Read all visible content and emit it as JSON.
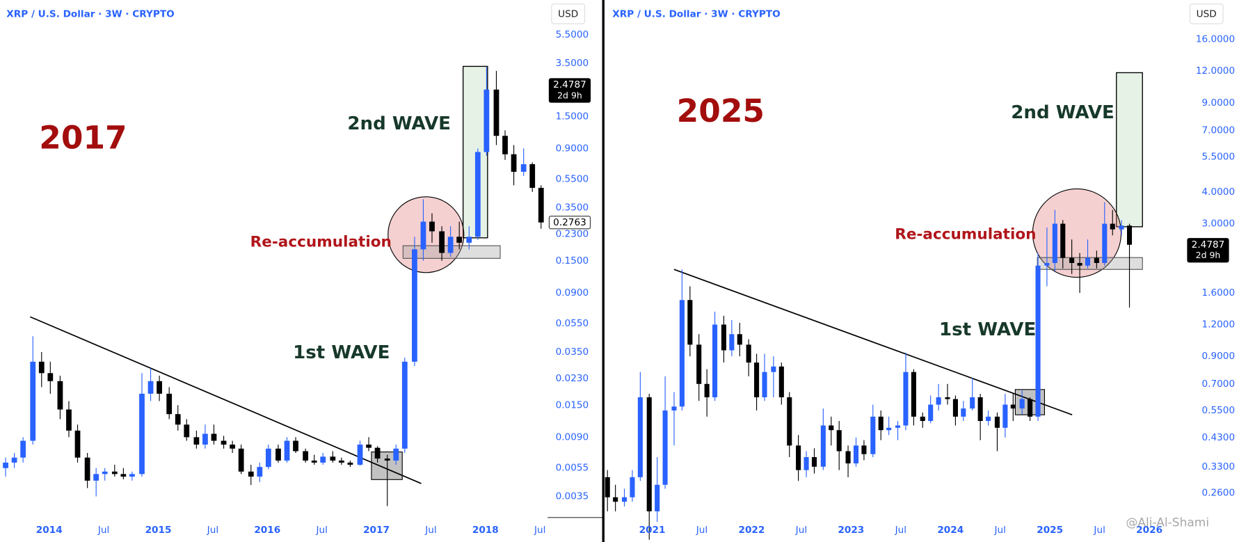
{
  "watermark": "@Ali-Al-Shami",
  "chart_data": [
    {
      "type": "candlestick",
      "title": "XRP / U.S. Dollar · 3W · CRYPTO",
      "currency": "USD",
      "log_scale": true,
      "grid": false,
      "up_color": "#2962ff",
      "down_color": "#000000",
      "xlim": [
        2013.55,
        2018.57
      ],
      "ylim": [
        0.0025,
        9.6
      ],
      "xticks": [
        2014,
        {
          "value": 2014.5,
          "label": "Jul"
        },
        2015,
        {
          "value": 2015.5,
          "label": "Jul"
        },
        2016,
        {
          "value": 2016.5,
          "label": "Jul"
        },
        2017,
        {
          "value": 2017.5,
          "label": "Jul"
        },
        2018,
        {
          "value": 2018.5,
          "label": "Jul"
        }
      ],
      "yticks": [
        {
          "value": 5.5,
          "label": "5.5000"
        },
        {
          "value": 3.5,
          "label": "3.5000"
        },
        {
          "value": 1.5,
          "label": "1.5000"
        },
        {
          "value": 0.9,
          "label": "0.9000"
        },
        {
          "value": 0.55,
          "label": "0.5500"
        },
        {
          "value": 0.35,
          "label": "0.3500"
        },
        {
          "value": 0.23,
          "label": "0.2300"
        },
        {
          "value": 0.15,
          "label": "0.1500"
        },
        {
          "value": 0.09,
          "label": "0.0900"
        },
        {
          "value": 0.055,
          "label": "0.0550"
        },
        {
          "value": 0.035,
          "label": "0.0350"
        },
        {
          "value": 0.023,
          "label": "0.0230"
        },
        {
          "value": 0.015,
          "label": "0.0150"
        },
        {
          "value": 0.009,
          "label": "0.0090"
        },
        {
          "value": 0.0055,
          "label": "0.0055"
        },
        {
          "value": 0.0035,
          "label": "0.0035"
        }
      ],
      "current_price": 2.4787,
      "countdown": "2d 9h",
      "annotations": {
        "year_label": "2017",
        "second_wave": "2nd WAVE",
        "first_wave": "1st WAVE",
        "reaccumulation": "Re-accumulation"
      },
      "x": [
        2013.6,
        2013.68,
        2013.76,
        2013.85,
        2013.93,
        2014.01,
        2014.1,
        2014.18,
        2014.26,
        2014.35,
        2014.43,
        2014.51,
        2014.6,
        2014.68,
        2014.76,
        2014.85,
        2014.93,
        2015.01,
        2015.1,
        2015.18,
        2015.26,
        2015.35,
        2015.43,
        2015.51,
        2015.6,
        2015.68,
        2015.76,
        2015.85,
        2015.93,
        2016.01,
        2016.1,
        2016.18,
        2016.26,
        2016.35,
        2016.43,
        2016.51,
        2016.6,
        2016.68,
        2016.76,
        2016.85,
        2016.93,
        2017.01,
        2017.1,
        2017.18,
        2017.26,
        2017.35,
        2017.43,
        2017.51,
        2017.6,
        2017.68,
        2017.76,
        2017.85,
        2017.93,
        2018.01,
        2018.1,
        2018.18,
        2018.26,
        2018.35,
        2018.43,
        2018.51
      ],
      "open": [
        0.0055,
        0.006,
        0.0065,
        0.0085,
        0.03,
        0.025,
        0.022,
        0.014,
        0.01,
        0.0065,
        0.0045,
        0.005,
        0.0052,
        0.005,
        0.0048,
        0.005,
        0.018,
        0.022,
        0.018,
        0.013,
        0.011,
        0.009,
        0.008,
        0.0095,
        0.0085,
        0.008,
        0.0075,
        0.0052,
        0.0048,
        0.0056,
        0.0075,
        0.0062,
        0.0085,
        0.0072,
        0.0062,
        0.006,
        0.0066,
        0.0062,
        0.006,
        0.0058,
        0.008,
        0.0076,
        0.0064,
        0.0062,
        0.0075,
        0.03,
        0.18,
        0.28,
        0.24,
        0.17,
        0.22,
        0.2,
        0.22,
        0.85,
        2.3,
        1.1,
        0.82,
        0.62,
        0.7,
        0.48
      ],
      "high": [
        0.0065,
        0.007,
        0.009,
        0.045,
        0.035,
        0.03,
        0.024,
        0.016,
        0.011,
        0.007,
        0.0055,
        0.0055,
        0.0058,
        0.0055,
        0.0052,
        0.025,
        0.027,
        0.024,
        0.02,
        0.015,
        0.012,
        0.01,
        0.011,
        0.011,
        0.0092,
        0.0085,
        0.008,
        0.0058,
        0.006,
        0.008,
        0.008,
        0.009,
        0.009,
        0.0075,
        0.0068,
        0.007,
        0.0072,
        0.0065,
        0.0062,
        0.0085,
        0.009,
        0.0078,
        0.0068,
        0.008,
        0.032,
        0.22,
        0.4,
        0.32,
        0.26,
        0.26,
        0.28,
        0.26,
        0.9,
        3.3,
        3.1,
        1.2,
        0.95,
        0.9,
        0.72,
        0.5
      ],
      "low": [
        0.0048,
        0.0055,
        0.006,
        0.008,
        0.02,
        0.018,
        0.012,
        0.009,
        0.006,
        0.004,
        0.0035,
        0.0045,
        0.0048,
        0.0046,
        0.0045,
        0.0048,
        0.016,
        0.016,
        0.012,
        0.01,
        0.0085,
        0.0075,
        0.0075,
        0.008,
        0.0075,
        0.007,
        0.005,
        0.0042,
        0.0044,
        0.0054,
        0.006,
        0.006,
        0.007,
        0.006,
        0.0058,
        0.0058,
        0.006,
        0.0058,
        0.0056,
        0.0057,
        0.0072,
        0.006,
        0.003,
        0.0058,
        0.007,
        0.028,
        0.15,
        0.2,
        0.15,
        0.16,
        0.18,
        0.18,
        0.21,
        0.8,
        0.95,
        0.75,
        0.5,
        0.58,
        0.45,
        0.25
      ],
      "close": [
        0.006,
        0.0065,
        0.0085,
        0.03,
        0.025,
        0.022,
        0.014,
        0.01,
        0.0065,
        0.0045,
        0.005,
        0.0052,
        0.005,
        0.0048,
        0.005,
        0.018,
        0.022,
        0.018,
        0.013,
        0.011,
        0.009,
        0.008,
        0.0095,
        0.0085,
        0.008,
        0.0075,
        0.0052,
        0.0048,
        0.0056,
        0.0075,
        0.0062,
        0.0085,
        0.0072,
        0.0062,
        0.006,
        0.0066,
        0.0062,
        0.006,
        0.0058,
        0.008,
        0.0076,
        0.0064,
        0.0062,
        0.0075,
        0.03,
        0.18,
        0.28,
        0.24,
        0.17,
        0.22,
        0.2,
        0.22,
        0.85,
        2.3,
        1.1,
        0.82,
        0.62,
        0.7,
        0.48,
        0.2763
      ]
    },
    {
      "type": "candlestick",
      "title": "XRP / U.S. Dollar · 3W · CRYPTO",
      "currency": "USD",
      "log_scale": true,
      "grid": false,
      "up_color": "#2962ff",
      "down_color": "#000000",
      "xlim": [
        2020.52,
        2026.36
      ],
      "ylim": [
        0.208,
        22.9
      ],
      "xticks": [
        2021,
        {
          "value": 2021.5,
          "label": "Jul"
        },
        2022,
        {
          "value": 2022.5,
          "label": "Jul"
        },
        2023,
        {
          "value": 2023.5,
          "label": "Jul"
        },
        2024,
        {
          "value": 2024.5,
          "label": "Jul"
        },
        2025,
        {
          "value": 2025.5,
          "label": "Jul"
        },
        2026
      ],
      "yticks": [
        {
          "value": 16,
          "label": "16.0000"
        },
        {
          "value": 12,
          "label": "12.0000"
        },
        {
          "value": 9,
          "label": "9.0000"
        },
        {
          "value": 7,
          "label": "7.0000"
        },
        {
          "value": 5.5,
          "label": "5.5000"
        },
        {
          "value": 4,
          "label": "4.0000"
        },
        {
          "value": 3,
          "label": "3.0000"
        },
        {
          "value": 1.6,
          "label": "1.6000"
        },
        {
          "value": 1.2,
          "label": "1.2000"
        },
        {
          "value": 0.9,
          "label": "0.9000"
        },
        {
          "value": 0.7,
          "label": "0.7000"
        },
        {
          "value": 0.55,
          "label": "0.5500"
        },
        {
          "value": 0.43,
          "label": "0.4300"
        },
        {
          "value": 0.33,
          "label": "0.3300"
        },
        {
          "value": 0.26,
          "label": "0.2600"
        }
      ],
      "countdown": "2d 9h",
      "annotations": {
        "year_label": "2025",
        "second_wave": "2nd WAVE",
        "first_wave": "1st WAVE",
        "reaccumulation": "Re-accumulation"
      },
      "x": [
        2020.55,
        2020.63,
        2020.72,
        2020.8,
        2020.88,
        2020.97,
        2021.05,
        2021.13,
        2021.22,
        2021.3,
        2021.38,
        2021.47,
        2021.55,
        2021.63,
        2021.72,
        2021.8,
        2021.88,
        2021.97,
        2022.05,
        2022.13,
        2022.22,
        2022.3,
        2022.38,
        2022.47,
        2022.55,
        2022.63,
        2022.72,
        2022.8,
        2022.88,
        2022.97,
        2023.05,
        2023.13,
        2023.22,
        2023.3,
        2023.38,
        2023.47,
        2023.55,
        2023.63,
        2023.72,
        2023.8,
        2023.88,
        2023.97,
        2024.05,
        2024.13,
        2024.22,
        2024.3,
        2024.38,
        2024.47,
        2024.55,
        2024.63,
        2024.72,
        2024.8,
        2024.88,
        2024.97,
        2025.05,
        2025.13,
        2025.22,
        2025.3,
        2025.38,
        2025.47,
        2025.55,
        2025.63,
        2025.72,
        2025.8
      ],
      "open": [
        0.3,
        0.25,
        0.24,
        0.25,
        0.3,
        0.62,
        0.22,
        0.28,
        0.55,
        0.57,
        1.5,
        1.0,
        0.7,
        0.62,
        1.2,
        0.95,
        1.1,
        1.0,
        0.85,
        0.62,
        0.78,
        0.82,
        0.62,
        0.4,
        0.32,
        0.36,
        0.33,
        0.48,
        0.46,
        0.38,
        0.34,
        0.4,
        0.37,
        0.52,
        0.46,
        0.47,
        0.48,
        0.78,
        0.52,
        0.5,
        0.58,
        0.62,
        0.61,
        0.52,
        0.56,
        0.62,
        0.5,
        0.52,
        0.47,
        0.58,
        0.56,
        0.61,
        0.52,
        2.05,
        2.1,
        3.0,
        2.2,
        2.1,
        2.05,
        2.2,
        2.1,
        3.0,
        2.85,
        2.95
      ],
      "high": [
        0.32,
        0.28,
        0.27,
        0.32,
        0.78,
        0.64,
        0.36,
        0.75,
        0.65,
        1.98,
        1.7,
        1.1,
        0.8,
        1.35,
        1.3,
        1.25,
        1.22,
        1.05,
        0.92,
        0.92,
        0.9,
        0.85,
        0.65,
        0.44,
        0.38,
        0.39,
        0.56,
        0.52,
        0.5,
        0.4,
        0.43,
        0.42,
        0.58,
        0.55,
        0.52,
        0.5,
        0.93,
        0.8,
        0.54,
        0.63,
        0.7,
        0.7,
        0.63,
        0.6,
        0.74,
        0.64,
        0.55,
        0.54,
        0.64,
        0.64,
        0.66,
        0.62,
        2.3,
        2.9,
        3.4,
        3.1,
        2.6,
        2.3,
        2.6,
        2.35,
        3.65,
        3.4,
        3.1,
        3.0
      ],
      "low": [
        0.22,
        0.22,
        0.23,
        0.24,
        0.29,
        0.17,
        0.2,
        0.27,
        0.4,
        0.55,
        0.9,
        0.6,
        0.52,
        0.6,
        0.85,
        0.9,
        0.9,
        0.75,
        0.55,
        0.6,
        0.62,
        0.58,
        0.36,
        0.29,
        0.3,
        0.31,
        0.32,
        0.4,
        0.32,
        0.3,
        0.33,
        0.35,
        0.36,
        0.42,
        0.44,
        0.42,
        0.46,
        0.48,
        0.47,
        0.49,
        0.55,
        0.58,
        0.48,
        0.5,
        0.55,
        0.42,
        0.48,
        0.38,
        0.43,
        0.5,
        0.53,
        0.5,
        0.5,
        1.7,
        1.95,
        2.0,
        1.9,
        1.6,
        2.0,
        2.0,
        2.05,
        2.7,
        2.7,
        1.4
      ],
      "close": [
        0.25,
        0.24,
        0.25,
        0.3,
        0.62,
        0.22,
        0.28,
        0.55,
        0.57,
        1.5,
        1.0,
        0.7,
        0.62,
        1.2,
        0.95,
        1.1,
        1.0,
        0.85,
        0.62,
        0.78,
        0.82,
        0.62,
        0.4,
        0.32,
        0.36,
        0.33,
        0.48,
        0.46,
        0.38,
        0.34,
        0.4,
        0.37,
        0.52,
        0.46,
        0.47,
        0.48,
        0.78,
        0.52,
        0.5,
        0.58,
        0.62,
        0.61,
        0.52,
        0.56,
        0.62,
        0.5,
        0.52,
        0.47,
        0.58,
        0.56,
        0.61,
        0.52,
        2.05,
        2.1,
        3.0,
        2.2,
        2.1,
        2.05,
        2.2,
        2.1,
        3.0,
        2.85,
        2.95,
        2.4787
      ]
    }
  ]
}
